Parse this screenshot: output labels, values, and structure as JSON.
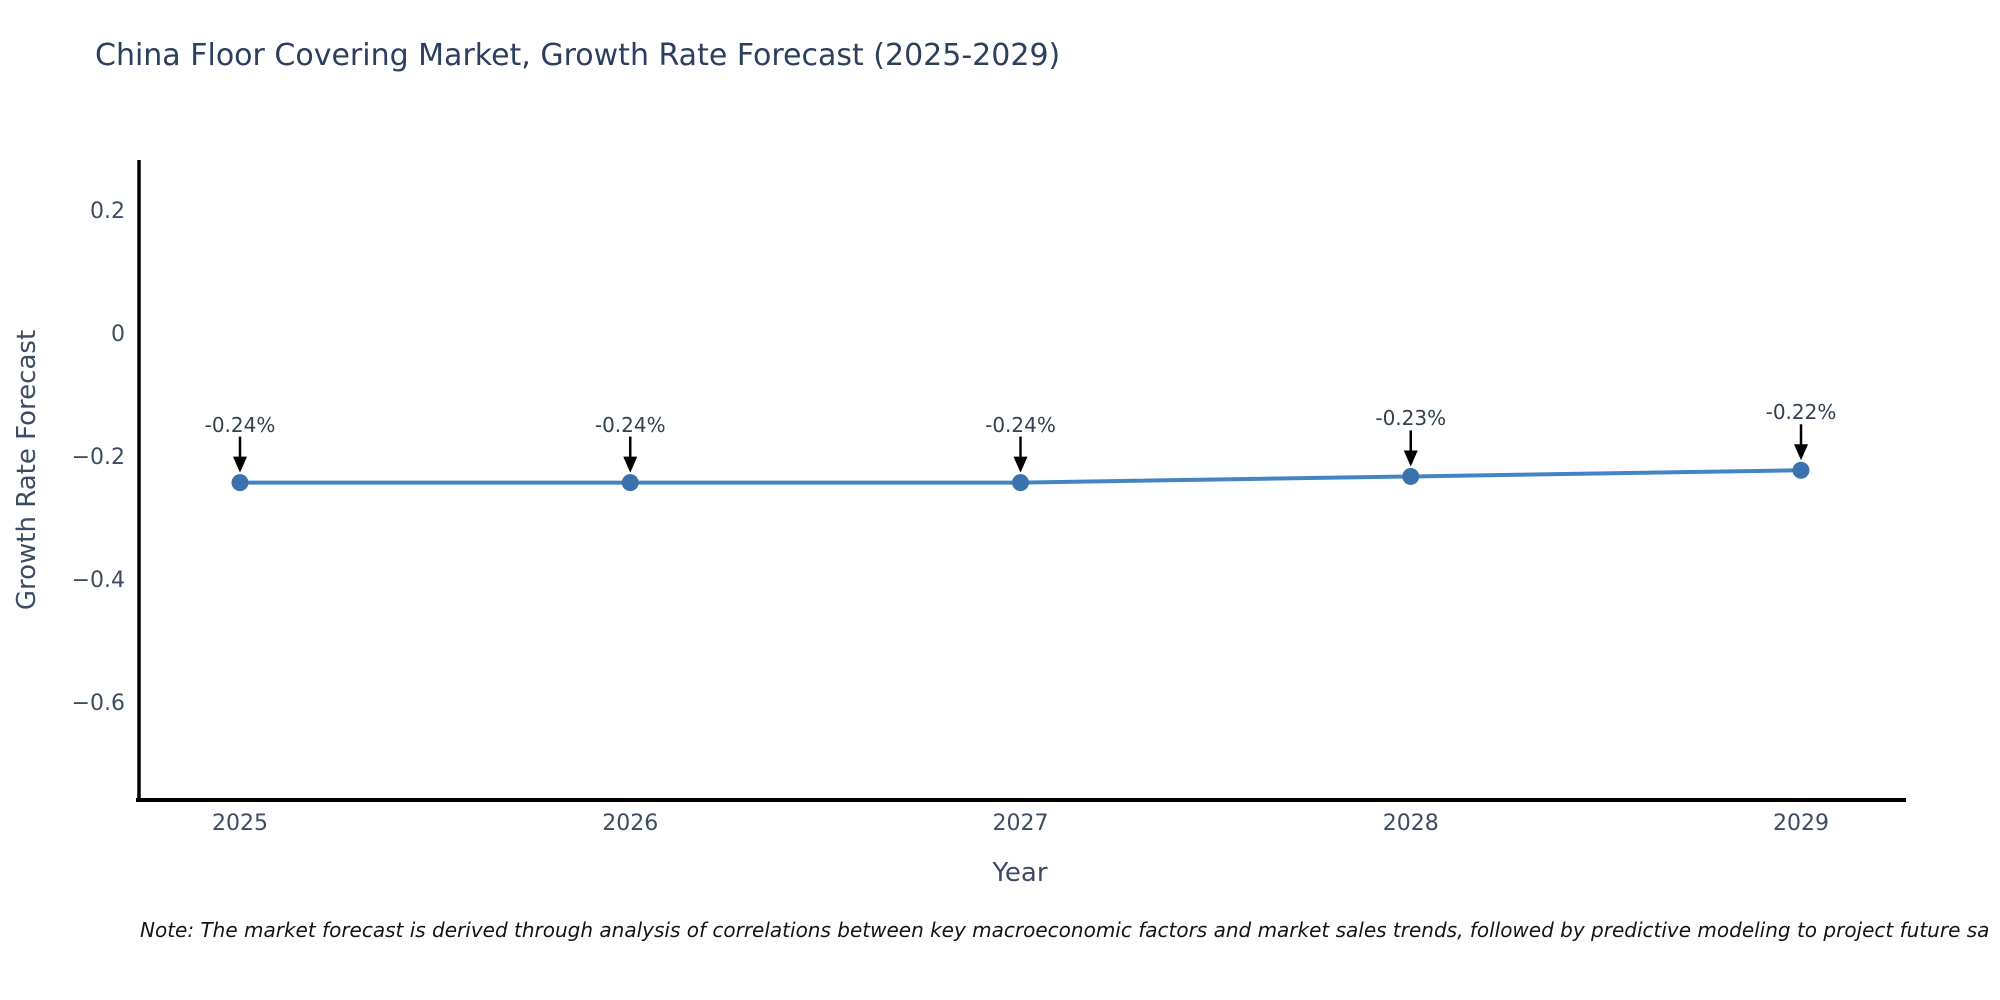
{
  "chart_data": {
    "type": "line",
    "title": "China Floor Covering Market, Growth Rate Forecast (2025-2029)",
    "xlabel": "Year",
    "ylabel": "Growth Rate Forecast",
    "categories": [
      "2025",
      "2026",
      "2027",
      "2028",
      "2029"
    ],
    "series": [
      {
        "name": "Growth Rate Forecast",
        "values": [
          -0.24,
          -0.24,
          -0.24,
          -0.23,
          -0.22
        ]
      }
    ],
    "point_labels": [
      "-0.24%",
      "-0.24%",
      "-0.24%",
      "-0.23%",
      "-0.22%"
    ],
    "ytick_labels": [
      "0.2",
      "0",
      "−0.2",
      "−0.4",
      "−0.6"
    ],
    "ytick_values": [
      0.2,
      0,
      -0.2,
      -0.4,
      -0.6
    ],
    "ylim": [
      -0.76,
      0.29
    ],
    "grid": false,
    "legend_position": "none",
    "colors": {
      "line": "#4285c3",
      "marker": "#3a72ad",
      "axis": "#000000",
      "annotation_arrow": "#000000",
      "title_text": "#2c3f5e",
      "tick_text": "#3e4c63"
    }
  },
  "footnote": {
    "text": "Note: The market forecast is derived through analysis of correlations between key macroeconomic factors and market sales trends, followed by predictive modeling to project future sa"
  }
}
